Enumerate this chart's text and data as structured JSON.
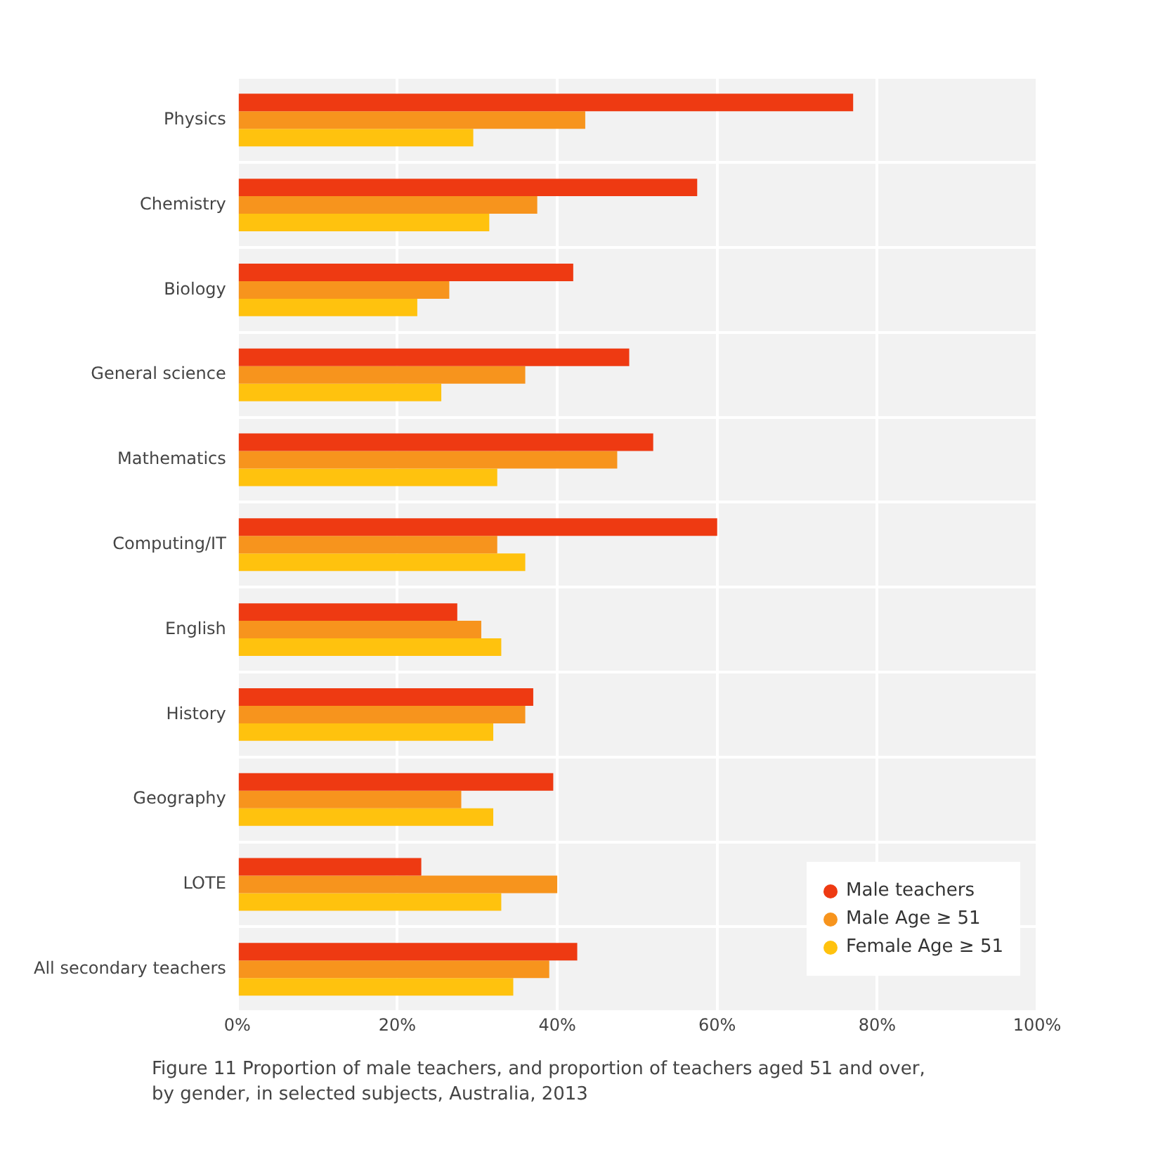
{
  "chart_data": {
    "type": "bar",
    "orientation": "horizontal",
    "categories": [
      "Physics",
      "Chemistry",
      "Biology",
      "General science",
      "Mathematics",
      "Computing/IT",
      "English",
      "History",
      "Geography",
      "LOTE",
      "All secondary teachers"
    ],
    "series": [
      {
        "name": "Male teachers",
        "color": "#ee3a12",
        "values": [
          77,
          57.5,
          42,
          49,
          52,
          60,
          27.5,
          37,
          39.5,
          23,
          42.5
        ]
      },
      {
        "name": "Male Age ≥ 51",
        "color": "#f7941d",
        "values": [
          43.5,
          37.5,
          26.5,
          36,
          47.5,
          32.5,
          30.5,
          36,
          28,
          40,
          39
        ]
      },
      {
        "name": "Female Age ≥ 51",
        "color": "#ffc20e",
        "values": [
          29.5,
          31.5,
          22.5,
          25.5,
          32.5,
          36,
          33,
          32,
          32,
          33,
          34.5
        ]
      }
    ],
    "xlim": [
      0,
      100
    ],
    "xticks": [
      {
        "value": 0,
        "label": "0%"
      },
      {
        "value": 20,
        "label": "20%"
      },
      {
        "value": 40,
        "label": "40%"
      },
      {
        "value": 60,
        "label": "60%"
      },
      {
        "value": 80,
        "label": "80%"
      },
      {
        "value": 100,
        "label": "100%"
      }
    ],
    "grid": true,
    "legend": "bottom right",
    "annotations": [
      "Figure 11  Proportion of male teachers, and proportion of teachers aged 51 and over, by gender, in selected subjects, Australia, 2013"
    ]
  }
}
